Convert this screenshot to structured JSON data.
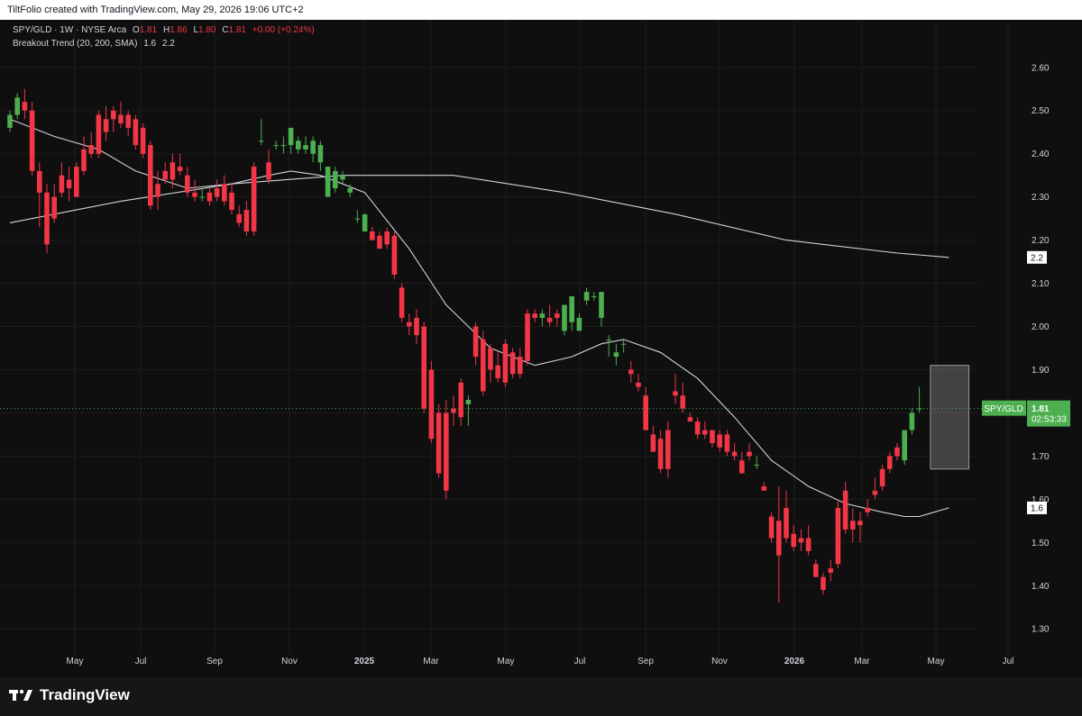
{
  "header": {
    "attribution": "TiltFolio created with TradingView.com, May 29, 2026 19:06 UTC+2"
  },
  "legend": {
    "symbol": "SPY/GLD · 1W · NYSE Arca",
    "ohlc": {
      "O": "1.81",
      "H": "1.86",
      "L": "1.80",
      "C": "1.81",
      "change": "+0.00 (+0.24%)"
    },
    "indicator": "Breakout Trend (20, 200, SMA)",
    "indicator_values": [
      "1.6",
      "2.2"
    ]
  },
  "branding": {
    "logo_text": "TradingView"
  },
  "price_tag": {
    "symbol": "SPY/GLD",
    "price": "1.81",
    "countdown": "02:53:33"
  },
  "colors": {
    "up": "#4caf50",
    "down": "#f23645",
    "background": "#0f0f0f",
    "grid": "#1c1c1c",
    "sma": "#d1d4dc"
  },
  "chart_data": {
    "type": "candlestick",
    "x_ticks": [
      "May",
      "Jul",
      "Sep",
      "Nov",
      "2025",
      "Mar",
      "May",
      "Jul",
      "Sep",
      "Nov",
      "2026",
      "Mar",
      "May",
      "Jul"
    ],
    "y_ticks": [
      "2.60",
      "2.50",
      "2.40",
      "2.30",
      "2.20",
      "2.10",
      "2.00",
      "1.90",
      "1.80",
      "1.70",
      "1.60",
      "1.50",
      "1.40",
      "1.30"
    ],
    "ylim": [
      1.24,
      2.71
    ],
    "candles": [
      {
        "o": 2.46,
        "h": 2.5,
        "l": 2.45,
        "c": 2.49
      },
      {
        "o": 2.49,
        "h": 2.54,
        "l": 2.48,
        "c": 2.53
      },
      {
        "o": 2.52,
        "h": 2.55,
        "l": 2.48,
        "c": 2.5
      },
      {
        "o": 2.5,
        "h": 2.52,
        "l": 2.35,
        "c": 2.36
      },
      {
        "o": 2.36,
        "h": 2.38,
        "l": 2.23,
        "c": 2.31
      },
      {
        "o": 2.31,
        "h": 2.33,
        "l": 2.17,
        "c": 2.19
      },
      {
        "o": 2.3,
        "h": 2.33,
        "l": 2.24,
        "c": 2.25
      },
      {
        "o": 2.35,
        "h": 2.38,
        "l": 2.3,
        "c": 2.31
      },
      {
        "o": 2.34,
        "h": 2.37,
        "l": 2.29,
        "c": 2.32
      },
      {
        "o": 2.37,
        "h": 2.38,
        "l": 2.3,
        "c": 2.3
      },
      {
        "o": 2.41,
        "h": 2.44,
        "l": 2.35,
        "c": 2.36
      },
      {
        "o": 2.42,
        "h": 2.45,
        "l": 2.39,
        "c": 2.4
      },
      {
        "o": 2.49,
        "h": 2.5,
        "l": 2.39,
        "c": 2.4
      },
      {
        "o": 2.48,
        "h": 2.51,
        "l": 2.43,
        "c": 2.45
      },
      {
        "o": 2.5,
        "h": 2.51,
        "l": 2.45,
        "c": 2.48
      },
      {
        "o": 2.49,
        "h": 2.52,
        "l": 2.46,
        "c": 2.47
      },
      {
        "o": 2.49,
        "h": 2.5,
        "l": 2.44,
        "c": 2.46
      },
      {
        "o": 2.48,
        "h": 2.49,
        "l": 2.41,
        "c": 2.42
      },
      {
        "o": 2.46,
        "h": 2.47,
        "l": 2.39,
        "c": 2.4
      },
      {
        "o": 2.42,
        "h": 2.43,
        "l": 2.27,
        "c": 2.28
      },
      {
        "o": 2.33,
        "h": 2.36,
        "l": 2.27,
        "c": 2.3
      },
      {
        "o": 2.36,
        "h": 2.38,
        "l": 2.33,
        "c": 2.34
      },
      {
        "o": 2.38,
        "h": 2.4,
        "l": 2.32,
        "c": 2.34
      },
      {
        "o": 2.37,
        "h": 2.4,
        "l": 2.35,
        "c": 2.36
      },
      {
        "o": 2.35,
        "h": 2.37,
        "l": 2.3,
        "c": 2.31
      },
      {
        "o": 2.31,
        "h": 2.34,
        "l": 2.29,
        "c": 2.3
      },
      {
        "o": 2.3,
        "h": 2.32,
        "l": 2.29,
        "c": 2.3
      },
      {
        "o": 2.31,
        "h": 2.32,
        "l": 2.28,
        "c": 2.29
      },
      {
        "o": 2.32,
        "h": 2.34,
        "l": 2.29,
        "c": 2.3
      },
      {
        "o": 2.33,
        "h": 2.35,
        "l": 2.28,
        "c": 2.29
      },
      {
        "o": 2.31,
        "h": 2.33,
        "l": 2.26,
        "c": 2.27
      },
      {
        "o": 2.26,
        "h": 2.28,
        "l": 2.23,
        "c": 2.24
      },
      {
        "o": 2.27,
        "h": 2.29,
        "l": 2.21,
        "c": 2.22
      },
      {
        "o": 2.37,
        "h": 2.38,
        "l": 2.21,
        "c": 2.22
      },
      {
        "o": 2.43,
        "h": 2.48,
        "l": 2.42,
        "c": 2.43
      },
      {
        "o": 2.38,
        "h": 2.41,
        "l": 2.33,
        "c": 2.34
      },
      {
        "o": 2.42,
        "h": 2.43,
        "l": 2.41,
        "c": 2.42
      },
      {
        "o": 2.42,
        "h": 2.44,
        "l": 2.4,
        "c": 2.42
      },
      {
        "o": 2.42,
        "h": 2.46,
        "l": 2.4,
        "c": 2.46
      },
      {
        "o": 2.41,
        "h": 2.44,
        "l": 2.4,
        "c": 2.43
      },
      {
        "o": 2.41,
        "h": 2.44,
        "l": 2.4,
        "c": 2.42
      },
      {
        "o": 2.4,
        "h": 2.44,
        "l": 2.38,
        "c": 2.43
      },
      {
        "o": 2.38,
        "h": 2.43,
        "l": 2.36,
        "c": 2.42
      },
      {
        "o": 2.3,
        "h": 2.37,
        "l": 2.3,
        "c": 2.37
      },
      {
        "o": 2.32,
        "h": 2.37,
        "l": 2.31,
        "c": 2.36
      },
      {
        "o": 2.34,
        "h": 2.36,
        "l": 2.33,
        "c": 2.35
      },
      {
        "o": 2.31,
        "h": 2.33,
        "l": 2.3,
        "c": 2.32
      },
      {
        "o": 2.25,
        "h": 2.27,
        "l": 2.24,
        "c": 2.25
      },
      {
        "o": 2.22,
        "h": 2.26,
        "l": 2.22,
        "c": 2.26
      },
      {
        "o": 2.22,
        "h": 2.23,
        "l": 2.2,
        "c": 2.2
      },
      {
        "o": 2.21,
        "h": 2.22,
        "l": 2.18,
        "c": 2.18
      },
      {
        "o": 2.22,
        "h": 2.23,
        "l": 2.18,
        "c": 2.19
      },
      {
        "o": 2.21,
        "h": 2.22,
        "l": 2.11,
        "c": 2.12
      },
      {
        "o": 2.09,
        "h": 2.1,
        "l": 2.01,
        "c": 2.02
      },
      {
        "o": 2.01,
        "h": 2.03,
        "l": 1.98,
        "c": 2.0
      },
      {
        "o": 2.02,
        "h": 2.04,
        "l": 1.96,
        "c": 1.98
      },
      {
        "o": 2.0,
        "h": 2.01,
        "l": 1.8,
        "c": 1.81
      },
      {
        "o": 1.9,
        "h": 1.92,
        "l": 1.73,
        "c": 1.74
      },
      {
        "o": 1.8,
        "h": 1.82,
        "l": 1.65,
        "c": 1.66
      },
      {
        "o": 1.8,
        "h": 1.83,
        "l": 1.6,
        "c": 1.62
      },
      {
        "o": 1.81,
        "h": 1.84,
        "l": 1.77,
        "c": 1.8
      },
      {
        "o": 1.87,
        "h": 1.88,
        "l": 1.77,
        "c": 1.79
      },
      {
        "o": 1.82,
        "h": 1.84,
        "l": 1.77,
        "c": 1.83
      },
      {
        "o": 2.0,
        "h": 2.01,
        "l": 1.91,
        "c": 1.93
      },
      {
        "o": 1.97,
        "h": 1.99,
        "l": 1.84,
        "c": 1.85
      },
      {
        "o": 1.95,
        "h": 1.96,
        "l": 1.87,
        "c": 1.9
      },
      {
        "o": 1.91,
        "h": 1.94,
        "l": 1.87,
        "c": 1.88
      },
      {
        "o": 1.96,
        "h": 1.97,
        "l": 1.86,
        "c": 1.87
      },
      {
        "o": 1.94,
        "h": 1.95,
        "l": 1.88,
        "c": 1.89
      },
      {
        "o": 1.93,
        "h": 1.95,
        "l": 1.88,
        "c": 1.89
      },
      {
        "o": 2.03,
        "h": 2.04,
        "l": 1.91,
        "c": 1.92
      },
      {
        "o": 2.03,
        "h": 2.04,
        "l": 2.01,
        "c": 2.02
      },
      {
        "o": 2.02,
        "h": 2.04,
        "l": 2.0,
        "c": 2.03
      },
      {
        "o": 2.02,
        "h": 2.05,
        "l": 2.0,
        "c": 2.01
      },
      {
        "o": 2.03,
        "h": 2.04,
        "l": 2.0,
        "c": 2.02
      },
      {
        "o": 1.99,
        "h": 2.05,
        "l": 1.98,
        "c": 2.05
      },
      {
        "o": 2.01,
        "h": 2.07,
        "l": 1.99,
        "c": 2.07
      },
      {
        "o": 1.99,
        "h": 2.03,
        "l": 1.99,
        "c": 2.02
      },
      {
        "o": 2.06,
        "h": 2.09,
        "l": 2.05,
        "c": 2.08
      },
      {
        "o": 2.07,
        "h": 2.08,
        "l": 2.06,
        "c": 2.07
      },
      {
        "o": 2.02,
        "h": 2.08,
        "l": 2.0,
        "c": 2.08
      },
      {
        "o": 1.97,
        "h": 1.98,
        "l": 1.93,
        "c": 1.97
      },
      {
        "o": 1.93,
        "h": 1.96,
        "l": 1.91,
        "c": 1.94
      },
      {
        "o": 1.96,
        "h": 1.97,
        "l": 1.94,
        "c": 1.96
      },
      {
        "o": 1.9,
        "h": 1.92,
        "l": 1.87,
        "c": 1.89
      },
      {
        "o": 1.87,
        "h": 1.89,
        "l": 1.85,
        "c": 1.86
      },
      {
        "o": 1.84,
        "h": 1.86,
        "l": 1.76,
        "c": 1.76
      },
      {
        "o": 1.75,
        "h": 1.77,
        "l": 1.71,
        "c": 1.71
      },
      {
        "o": 1.74,
        "h": 1.76,
        "l": 1.66,
        "c": 1.67
      },
      {
        "o": 1.76,
        "h": 1.78,
        "l": 1.65,
        "c": 1.67
      },
      {
        "o": 1.85,
        "h": 1.89,
        "l": 1.82,
        "c": 1.84
      },
      {
        "o": 1.84,
        "h": 1.87,
        "l": 1.8,
        "c": 1.81
      },
      {
        "o": 1.79,
        "h": 1.8,
        "l": 1.78,
        "c": 1.78
      },
      {
        "o": 1.78,
        "h": 1.79,
        "l": 1.74,
        "c": 1.75
      },
      {
        "o": 1.76,
        "h": 1.78,
        "l": 1.74,
        "c": 1.75
      },
      {
        "o": 1.76,
        "h": 1.76,
        "l": 1.72,
        "c": 1.73
      },
      {
        "o": 1.75,
        "h": 1.76,
        "l": 1.71,
        "c": 1.72
      },
      {
        "o": 1.75,
        "h": 1.76,
        "l": 1.7,
        "c": 1.71
      },
      {
        "o": 1.71,
        "h": 1.73,
        "l": 1.69,
        "c": 1.7
      },
      {
        "o": 1.69,
        "h": 1.71,
        "l": 1.66,
        "c": 1.66
      },
      {
        "o": 1.71,
        "h": 1.73,
        "l": 1.69,
        "c": 1.7
      },
      {
        "o": 1.68,
        "h": 1.7,
        "l": 1.67,
        "c": 1.68
      },
      {
        "o": 1.63,
        "h": 1.64,
        "l": 1.62,
        "c": 1.62
      },
      {
        "o": 1.56,
        "h": 1.57,
        "l": 1.5,
        "c": 1.51
      },
      {
        "o": 1.55,
        "h": 1.63,
        "l": 1.36,
        "c": 1.47
      },
      {
        "o": 1.58,
        "h": 1.62,
        "l": 1.5,
        "c": 1.51
      },
      {
        "o": 1.52,
        "h": 1.54,
        "l": 1.48,
        "c": 1.49
      },
      {
        "o": 1.51,
        "h": 1.53,
        "l": 1.48,
        "c": 1.5
      },
      {
        "o": 1.51,
        "h": 1.54,
        "l": 1.47,
        "c": 1.48
      },
      {
        "o": 1.45,
        "h": 1.46,
        "l": 1.42,
        "c": 1.42
      },
      {
        "o": 1.42,
        "h": 1.43,
        "l": 1.38,
        "c": 1.39
      },
      {
        "o": 1.44,
        "h": 1.46,
        "l": 1.41,
        "c": 1.43
      },
      {
        "o": 1.58,
        "h": 1.6,
        "l": 1.44,
        "c": 1.45
      },
      {
        "o": 1.62,
        "h": 1.64,
        "l": 1.52,
        "c": 1.53
      },
      {
        "o": 1.55,
        "h": 1.58,
        "l": 1.5,
        "c": 1.53
      },
      {
        "o": 1.55,
        "h": 1.57,
        "l": 1.5,
        "c": 1.54
      },
      {
        "o": 1.58,
        "h": 1.6,
        "l": 1.56,
        "c": 1.57
      },
      {
        "o": 1.62,
        "h": 1.65,
        "l": 1.6,
        "c": 1.61
      },
      {
        "o": 1.67,
        "h": 1.68,
        "l": 1.62,
        "c": 1.63
      },
      {
        "o": 1.7,
        "h": 1.71,
        "l": 1.66,
        "c": 1.67
      },
      {
        "o": 1.72,
        "h": 1.73,
        "l": 1.69,
        "c": 1.7
      },
      {
        "o": 1.69,
        "h": 1.75,
        "l": 1.68,
        "c": 1.76
      },
      {
        "o": 1.76,
        "h": 1.81,
        "l": 1.75,
        "c": 1.8
      },
      {
        "o": 1.81,
        "h": 1.86,
        "l": 1.8,
        "c": 1.81
      }
    ],
    "sma20": [
      [
        0,
        2.48
      ],
      [
        6,
        2.44
      ],
      [
        12,
        2.41
      ],
      [
        17,
        2.36
      ],
      [
        24,
        2.32
      ],
      [
        30,
        2.33
      ],
      [
        35,
        2.35
      ],
      [
        38,
        2.36
      ],
      [
        42,
        2.35
      ],
      [
        48,
        2.31
      ],
      [
        54,
        2.18
      ],
      [
        59,
        2.05
      ],
      [
        65,
        1.95
      ],
      [
        71,
        1.91
      ],
      [
        76,
        1.93
      ],
      [
        80,
        1.96
      ],
      [
        83,
        1.97
      ],
      [
        88,
        1.94
      ],
      [
        93,
        1.88
      ],
      [
        98,
        1.79
      ],
      [
        103,
        1.69
      ],
      [
        108,
        1.63
      ],
      [
        113,
        1.59
      ],
      [
        118,
        1.57
      ],
      [
        121,
        1.56
      ],
      [
        123,
        1.56
      ],
      [
        125,
        1.57
      ],
      [
        127,
        1.58
      ]
    ],
    "sma200": [
      [
        0,
        2.24
      ],
      [
        15,
        2.29
      ],
      [
        30,
        2.33
      ],
      [
        45,
        2.35
      ],
      [
        60,
        2.35
      ],
      [
        75,
        2.31
      ],
      [
        90,
        2.26
      ],
      [
        105,
        2.2
      ],
      [
        120,
        2.17
      ],
      [
        127,
        2.16
      ]
    ],
    "indicator_labels": {
      "sma20": "1.6",
      "sma200": "2.2"
    },
    "breakout_box": {
      "x_start": 124.5,
      "x_end": 129.7,
      "y_high": 1.91,
      "y_low": 1.67
    }
  }
}
